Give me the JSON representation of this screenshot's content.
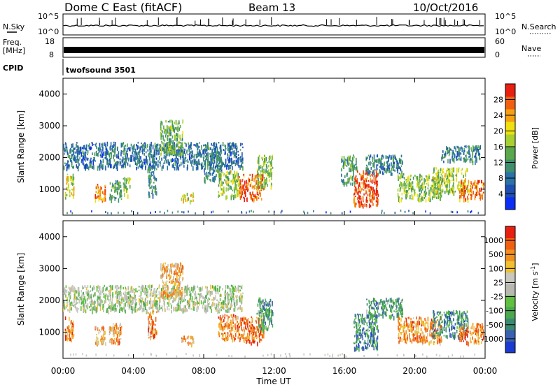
{
  "header": {
    "station": "Dome C East (fitACF)",
    "beam": "Beam 13",
    "date": "10/Oct/2016"
  },
  "summary_panels": {
    "nsky": {
      "label": "N.Sky",
      "ticks": [
        "10^5",
        "10^0"
      ]
    },
    "nsearch": {
      "label": "N.Search",
      "ticks": [
        "10^5",
        "10^0"
      ]
    },
    "freq": {
      "label_top": "Freq.",
      "label_bottom": "[MHz]",
      "ticks": [
        "18",
        "8"
      ]
    },
    "nave": {
      "label": "Nave",
      "ticks": [
        "60",
        "0"
      ]
    },
    "cpid": {
      "label": "CPID",
      "value": "twofsound 3501"
    }
  },
  "chart_data": [
    {
      "type": "heatmap",
      "name": "power-panel",
      "xlabel": "",
      "ylabel": "Slant Range [km]",
      "x_ticks": [
        "00:00",
        "04:00",
        "08:00",
        "12:00",
        "16:00",
        "20:00",
        "00:00"
      ],
      "x_range_hours": [
        0,
        24
      ],
      "y_ticks": [
        1000,
        2000,
        3000,
        4000
      ],
      "y_range_km": [
        180,
        4500
      ],
      "colorbar": {
        "label": "Power [dB]",
        "ticks": [
          "28",
          "24",
          "20",
          "16",
          "12",
          "8",
          "4"
        ],
        "colors": [
          "#0a2ef5",
          "#1e4fb0",
          "#2a72a8",
          "#3f8f6e",
          "#5aa84c",
          "#a8d030",
          "#f0e010",
          "#f5a010",
          "#f06010",
          "#e82010"
        ]
      },
      "regions": [
        {
          "t0": 0.0,
          "t1": 10.2,
          "r0": 1700,
          "r1": 2500,
          "level": 0.25
        },
        {
          "t0": 0.1,
          "t1": 0.6,
          "r0": 800,
          "r1": 1500,
          "level": 0.6
        },
        {
          "t0": 1.8,
          "t1": 2.4,
          "r0": 650,
          "r1": 1200,
          "level": 0.8
        },
        {
          "t0": 2.6,
          "t1": 3.3,
          "r0": 700,
          "r1": 1300,
          "level": 0.4
        },
        {
          "t0": 3.4,
          "t1": 3.8,
          "r0": 800,
          "r1": 1400,
          "level": 0.55
        },
        {
          "t0": 4.8,
          "t1": 5.3,
          "r0": 800,
          "r1": 1700,
          "level": 0.35
        },
        {
          "t0": 5.5,
          "t1": 6.8,
          "r0": 2100,
          "r1": 3200,
          "level": 0.45
        },
        {
          "t0": 6.7,
          "t1": 7.4,
          "r0": 650,
          "r1": 900,
          "level": 0.6
        },
        {
          "t0": 8.0,
          "t1": 9.0,
          "r0": 1300,
          "r1": 2200,
          "level": 0.3
        },
        {
          "t0": 8.8,
          "t1": 10.0,
          "r0": 800,
          "r1": 1600,
          "level": 0.55
        },
        {
          "t0": 10.0,
          "t1": 11.4,
          "r0": 700,
          "r1": 1500,
          "level": 0.85
        },
        {
          "t0": 11.0,
          "t1": 11.9,
          "r0": 1100,
          "r1": 2100,
          "level": 0.5
        },
        {
          "t0": 15.8,
          "t1": 16.7,
          "r0": 1200,
          "r1": 2100,
          "level": 0.4
        },
        {
          "t0": 16.5,
          "t1": 17.9,
          "r0": 500,
          "r1": 1600,
          "level": 0.9
        },
        {
          "t0": 17.2,
          "t1": 19.3,
          "r0": 1500,
          "r1": 2100,
          "level": 0.3
        },
        {
          "t0": 19.0,
          "t1": 21.5,
          "r0": 700,
          "r1": 1500,
          "level": 0.5
        },
        {
          "t0": 21.0,
          "t1": 23.0,
          "r0": 900,
          "r1": 1700,
          "level": 0.55
        },
        {
          "t0": 22.5,
          "t1": 23.9,
          "r0": 700,
          "r1": 1300,
          "level": 0.8
        },
        {
          "t0": 21.5,
          "t1": 23.7,
          "r0": 1900,
          "r1": 2400,
          "level": 0.3
        }
      ]
    },
    {
      "type": "heatmap",
      "name": "velocity-panel",
      "xlabel": "Time UT",
      "ylabel": "Slant Range [km]",
      "x_ticks": [
        "00:00",
        "04:00",
        "08:00",
        "12:00",
        "16:00",
        "20:00",
        "00:00"
      ],
      "x_range_hours": [
        0,
        24
      ],
      "y_ticks": [
        1000,
        2000,
        3000,
        4000
      ],
      "y_range_km": [
        180,
        4500
      ],
      "colorbar": {
        "label": "Velocity [m s^-1]",
        "ticks": [
          "1000",
          "500",
          "100",
          "25",
          "-25",
          "-100",
          "-500",
          "-1000"
        ],
        "colors": [
          "#1a3ad0",
          "#3a60b0",
          "#3a8a70",
          "#4aa850",
          "#60c040",
          "#b8b8b0",
          "#c8c8c0",
          "#f0c030",
          "#f09020",
          "#f06010",
          "#e82010"
        ]
      },
      "regions": [
        {
          "t0": 0.0,
          "t1": 10.2,
          "r0": 1700,
          "r1": 2500,
          "level": 0.5
        },
        {
          "t0": 0.1,
          "t1": 0.6,
          "r0": 800,
          "r1": 1500,
          "level": 0.8
        },
        {
          "t0": 1.8,
          "t1": 2.4,
          "r0": 650,
          "r1": 1200,
          "level": 0.72
        },
        {
          "t0": 2.6,
          "t1": 3.3,
          "r0": 700,
          "r1": 1300,
          "level": 0.75
        },
        {
          "t0": 4.8,
          "t1": 5.3,
          "r0": 800,
          "r1": 1700,
          "level": 0.8
        },
        {
          "t0": 5.5,
          "t1": 6.8,
          "r0": 2100,
          "r1": 3200,
          "level": 0.7
        },
        {
          "t0": 6.7,
          "t1": 7.4,
          "r0": 650,
          "r1": 900,
          "level": 0.78
        },
        {
          "t0": 8.8,
          "t1": 10.0,
          "r0": 800,
          "r1": 1600,
          "level": 0.8
        },
        {
          "t0": 10.0,
          "t1": 11.4,
          "r0": 700,
          "r1": 1500,
          "level": 0.85
        },
        {
          "t0": 11.0,
          "t1": 11.9,
          "r0": 1100,
          "r1": 2100,
          "level": 0.3
        },
        {
          "t0": 16.5,
          "t1": 17.9,
          "r0": 500,
          "r1": 1600,
          "level": 0.25
        },
        {
          "t0": 17.2,
          "t1": 19.3,
          "r0": 1500,
          "r1": 2100,
          "level": 0.3
        },
        {
          "t0": 19.0,
          "t1": 21.5,
          "r0": 700,
          "r1": 1500,
          "level": 0.78
        },
        {
          "t0": 21.0,
          "t1": 23.0,
          "r0": 900,
          "r1": 1700,
          "level": 0.25
        },
        {
          "t0": 22.5,
          "t1": 23.9,
          "r0": 700,
          "r1": 1300,
          "level": 0.8
        }
      ]
    }
  ]
}
